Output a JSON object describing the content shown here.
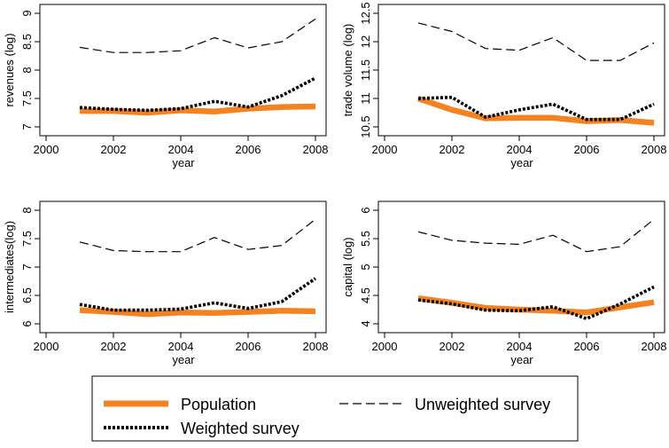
{
  "colors": {
    "population": "#f58220",
    "weighted": "#000000",
    "unweighted": "#000000",
    "axis": "#000000",
    "background": "#ffffff"
  },
  "legend": {
    "population_label": "Population",
    "unweighted_label": "Unweighted survey",
    "weighted_label": "Weighted survey"
  },
  "chart_data": [
    {
      "type": "line",
      "xlabel": "year",
      "ylabel": "revenues (log)",
      "xlim": [
        2000,
        2008
      ],
      "ylim": [
        7,
        9
      ],
      "xticks": [
        2000,
        2002,
        2004,
        2006,
        2008
      ],
      "yticks": [
        7,
        7.5,
        8,
        8.5,
        9
      ],
      "x": [
        2001,
        2002,
        2003,
        2004,
        2005,
        2006,
        2007,
        2008
      ],
      "series": [
        {
          "name": "Population",
          "values": [
            7.28,
            7.28,
            7.25,
            7.29,
            7.27,
            7.32,
            7.35,
            7.36
          ]
        },
        {
          "name": "Weighted survey",
          "values": [
            7.34,
            7.31,
            7.29,
            7.32,
            7.45,
            7.35,
            7.55,
            7.86
          ]
        },
        {
          "name": "Unweighted survey",
          "values": [
            8.4,
            8.31,
            8.31,
            8.34,
            8.57,
            8.39,
            8.5,
            8.9
          ]
        }
      ]
    },
    {
      "type": "line",
      "xlabel": "year",
      "ylabel": "trade volume (log)",
      "xlim": [
        2000,
        2008
      ],
      "ylim": [
        10.5,
        12.5
      ],
      "xticks": [
        2000,
        2002,
        2004,
        2006,
        2008
      ],
      "yticks": [
        10.5,
        11,
        11.5,
        12,
        12.5
      ],
      "x": [
        2001,
        2002,
        2003,
        2004,
        2005,
        2006,
        2007,
        2008
      ],
      "series": [
        {
          "name": "Population",
          "values": [
            11.0,
            10.8,
            10.65,
            10.66,
            10.66,
            10.6,
            10.62,
            10.57
          ]
        },
        {
          "name": "Weighted survey",
          "values": [
            11.0,
            11.02,
            10.67,
            10.8,
            10.9,
            10.63,
            10.63,
            10.9
          ]
        },
        {
          "name": "Unweighted survey",
          "values": [
            12.33,
            12.18,
            11.88,
            11.85,
            12.07,
            11.67,
            11.67,
            11.98
          ]
        }
      ]
    },
    {
      "type": "line",
      "xlabel": "year",
      "ylabel": "intermediates(log)",
      "xlim": [
        2000,
        2008
      ],
      "ylim": [
        6,
        8
      ],
      "xticks": [
        2000,
        2002,
        2004,
        2006,
        2008
      ],
      "yticks": [
        6,
        6.5,
        7,
        7.5,
        8
      ],
      "x": [
        2001,
        2002,
        2003,
        2004,
        2005,
        2006,
        2007,
        2008
      ],
      "series": [
        {
          "name": "Population",
          "values": [
            6.24,
            6.21,
            6.17,
            6.2,
            6.19,
            6.21,
            6.23,
            6.22
          ]
        },
        {
          "name": "Weighted survey",
          "values": [
            6.34,
            6.24,
            6.24,
            6.26,
            6.37,
            6.27,
            6.39,
            6.8
          ]
        },
        {
          "name": "Unweighted survey",
          "values": [
            7.44,
            7.29,
            7.27,
            7.27,
            7.52,
            7.31,
            7.38,
            7.84
          ]
        }
      ]
    },
    {
      "type": "line",
      "xlabel": "year",
      "ylabel": "capital (log)",
      "xlim": [
        2000,
        2008
      ],
      "ylim": [
        4,
        6
      ],
      "xticks": [
        2000,
        2002,
        2004,
        2006,
        2008
      ],
      "yticks": [
        4,
        4.5,
        5,
        5.5,
        6
      ],
      "x": [
        2001,
        2002,
        2003,
        2004,
        2005,
        2006,
        2007,
        2008
      ],
      "series": [
        {
          "name": "Population",
          "values": [
            4.45,
            4.37,
            4.28,
            4.25,
            4.23,
            4.2,
            4.29,
            4.38
          ]
        },
        {
          "name": "Weighted survey",
          "values": [
            4.42,
            4.35,
            4.24,
            4.23,
            4.3,
            4.09,
            4.35,
            4.65
          ]
        },
        {
          "name": "Unweighted survey",
          "values": [
            5.62,
            5.47,
            5.42,
            5.4,
            5.56,
            5.27,
            5.36,
            5.84
          ]
        }
      ]
    }
  ]
}
